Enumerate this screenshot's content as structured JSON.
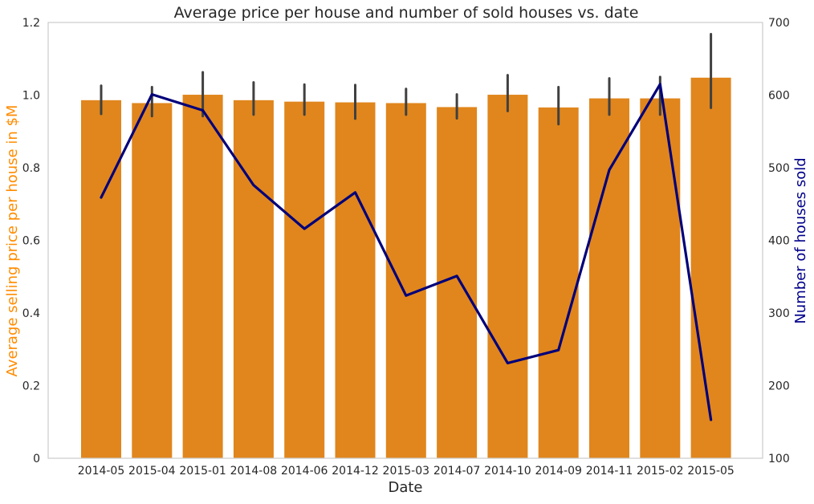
{
  "colors": {
    "bar": "#e0861d",
    "line": "#00007a",
    "errorbar": "#404040",
    "axis": "#cccccc",
    "left_label": "#ff8c00",
    "right_label": "#00008b",
    "text": "#262626"
  },
  "chart_data": {
    "type": "bar",
    "title": "Average price per house and number of sold houses vs. date",
    "xlabel": "Date",
    "ylabel": "Average selling price per house in $M",
    "y2label": "Number of houses sold",
    "categories": [
      "2014-05",
      "2015-04",
      "2015-01",
      "2014-08",
      "2014-06",
      "2014-12",
      "2015-03",
      "2014-07",
      "2014-10",
      "2014-09",
      "2014-11",
      "2015-02",
      "2015-05"
    ],
    "ylim": [
      0,
      1.2
    ],
    "yticks": [
      "0",
      "0.2",
      "0.4",
      "0.6",
      "0.8",
      "1.0",
      "1.2"
    ],
    "y2lim": [
      100,
      700
    ],
    "y2ticks": [
      "100",
      "200",
      "300",
      "400",
      "500",
      "600",
      "700"
    ],
    "grid": false,
    "series": [
      {
        "type": "bar",
        "axis": "left",
        "values": [
          0.986,
          0.978,
          1.001,
          0.986,
          0.982,
          0.98,
          0.978,
          0.967,
          1.001,
          0.966,
          0.991,
          0.991,
          1.048
        ],
        "error_low": [
          0.948,
          0.942,
          0.942,
          0.946,
          0.946,
          0.935,
          0.946,
          0.936,
          0.956,
          0.92,
          0.946,
          0.946,
          0.965
        ],
        "error_high": [
          1.026,
          1.022,
          1.063,
          1.035,
          1.029,
          1.028,
          1.017,
          1.002,
          1.055,
          1.022,
          1.046,
          1.05,
          1.168
        ]
      },
      {
        "type": "line",
        "axis": "right",
        "values": [
          459,
          601,
          579,
          476,
          416,
          466,
          324,
          351,
          231,
          249,
          497,
          615,
          153
        ]
      }
    ]
  }
}
